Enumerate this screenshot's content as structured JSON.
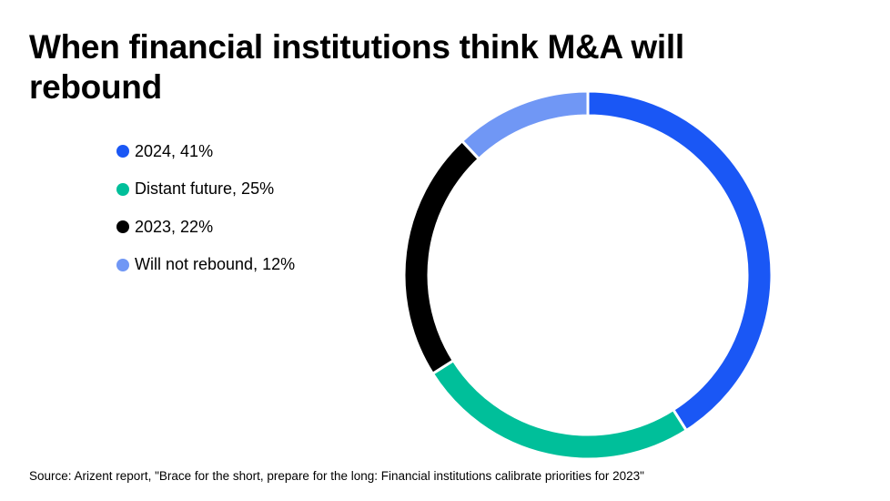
{
  "chart_data": {
    "type": "pie",
    "title": "When financial institutions think M&A will rebound",
    "categories": [
      "2024",
      "Distant future",
      "2023",
      "Will not rebound"
    ],
    "values": [
      41,
      25,
      22,
      12
    ],
    "legend_labels": [
      "2024, 41%",
      "Distant future, 25%",
      "2023, 22%",
      "Will not rebound, 12%"
    ],
    "colors": [
      "#1a57f5",
      "#00bf9a",
      "#000000",
      "#7097f5"
    ],
    "legend_position": "left",
    "donut": true,
    "source": "Source: Arizent report, \"Brace for the short, prepare for the long: Financial institutions calibrate priorities for 2023\""
  }
}
